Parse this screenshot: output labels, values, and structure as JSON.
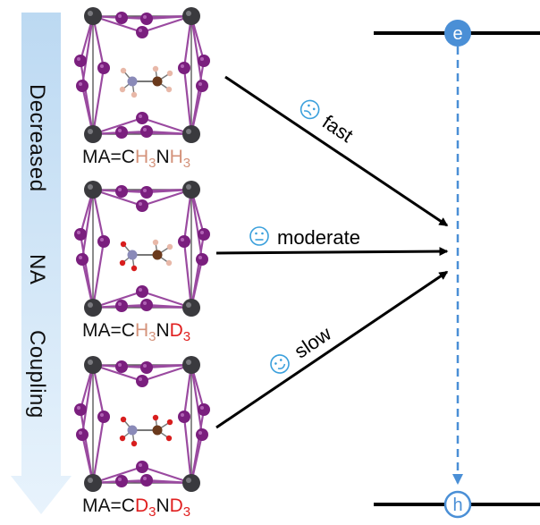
{
  "side_arrow": {
    "words": [
      "Decreased",
      "NA",
      "Coupling"
    ],
    "color_top": "#bcd9f2",
    "color_bottom": "#e8f3fc"
  },
  "structures": [
    {
      "formula_parts": [
        {
          "text": "MA=C",
          "color": "#111111",
          "sub": false
        },
        {
          "text": "H",
          "color": "#d4927a",
          "sub": false
        },
        {
          "text": "3",
          "color": "#d4927a",
          "sub": true
        },
        {
          "text": "N",
          "color": "#111111",
          "sub": false
        },
        {
          "text": "H",
          "color": "#d4927a",
          "sub": false
        },
        {
          "text": "3",
          "color": "#d4927a",
          "sub": true
        }
      ],
      "ch_atoms": "H",
      "nh_atoms": "H"
    },
    {
      "formula_parts": [
        {
          "text": "MA=C",
          "color": "#111111",
          "sub": false
        },
        {
          "text": "H",
          "color": "#d4927a",
          "sub": false
        },
        {
          "text": "3",
          "color": "#d4927a",
          "sub": true
        },
        {
          "text": "N",
          "color": "#111111",
          "sub": false
        },
        {
          "text": "D",
          "color": "#e02020",
          "sub": false
        },
        {
          "text": "3",
          "color": "#e02020",
          "sub": true
        }
      ],
      "ch_atoms": "H",
      "nh_atoms": "D"
    },
    {
      "formula_parts": [
        {
          "text": "MA=C",
          "color": "#111111",
          "sub": false
        },
        {
          "text": "D",
          "color": "#e02020",
          "sub": false
        },
        {
          "text": "3",
          "color": "#e02020",
          "sub": true
        },
        {
          "text": "N",
          "color": "#111111",
          "sub": false
        },
        {
          "text": "D",
          "color": "#e02020",
          "sub": false
        },
        {
          "text": "3",
          "color": "#e02020",
          "sub": true
        }
      ],
      "ch_atoms": "D",
      "nh_atoms": "D"
    }
  ],
  "rates": [
    {
      "label": "fast",
      "face": "sad"
    },
    {
      "label": "moderate",
      "face": "neutral"
    },
    {
      "label": "slow",
      "face": "happy"
    }
  ],
  "levels": {
    "electron_label": "e",
    "hole_label": "h"
  },
  "colors": {
    "pb_atom": "#3a3a3e",
    "i_atom": "#7a1f7e",
    "bond": "#9a4aa0",
    "frame": "#5a5a5a",
    "c_atom": "#6b3a1c",
    "n_atom": "#8a8ab8",
    "h_atom": "#e8b8a8",
    "d_atom": "#d81e1e",
    "level_blue": "#4a8fd6",
    "face_blue": "#3ba0dc"
  }
}
